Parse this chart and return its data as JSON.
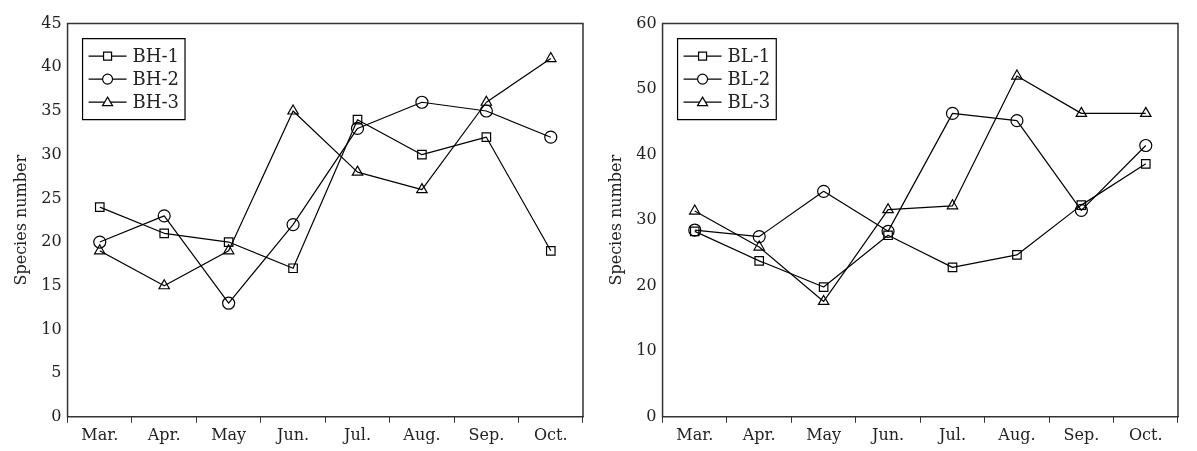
{
  "chart_data": [
    {
      "type": "line",
      "ylabel": "Species number",
      "categories": [
        "Mar.",
        "Apr.",
        "May",
        "Jun.",
        "Jul.",
        "Aug.",
        "Sep.",
        "Oct."
      ],
      "ylim": [
        0,
        45
      ],
      "yticks": [
        0,
        5,
        10,
        15,
        20,
        25,
        30,
        35,
        40,
        45
      ],
      "grid": false,
      "legend": "top left",
      "line_style": "solid",
      "series": [
        {
          "name": "BH-1",
          "color": "#000000",
          "marker": "square",
          "values": [
            24,
            21,
            20,
            17,
            34,
            30,
            32,
            19
          ]
        },
        {
          "name": "BH-2",
          "color": "#000000",
          "marker": "circle",
          "values": [
            20,
            23,
            13,
            22,
            33,
            36,
            35,
            32
          ]
        },
        {
          "name": "BH-3",
          "color": "#000000",
          "marker": "triangle",
          "values": [
            19,
            15,
            19,
            35,
            28,
            26,
            36,
            41
          ]
        }
      ]
    },
    {
      "type": "line",
      "ylabel": "Species number",
      "categories": [
        "Mar.",
        "Apr.",
        "May",
        "Jun.",
        "Jul.",
        "Aug.",
        "Sep.",
        "Oct."
      ],
      "ylim": [
        0,
        60
      ],
      "yticks": [
        0,
        10,
        20,
        30,
        40,
        50,
        60
      ],
      "grid": false,
      "legend": "top left",
      "line_style": "solid",
      "series": [
        {
          "name": "BL-1",
          "color": "#000000",
          "marker": "square",
          "values": [
            28.3,
            23.8,
            19.8,
            27.7,
            22.8,
            24.7,
            32.3,
            38.6
          ]
        },
        {
          "name": "BL-2",
          "color": "#000000",
          "marker": "circle",
          "values": [
            28.5,
            27.5,
            34.4,
            28.3,
            46.3,
            45.2,
            31.5,
            41.4
          ]
        },
        {
          "name": "BL-3",
          "color": "#000000",
          "marker": "triangle",
          "values": [
            31.4,
            25.9,
            17.6,
            31.6,
            32.2,
            52,
            46.3,
            46.3
          ]
        }
      ]
    }
  ]
}
